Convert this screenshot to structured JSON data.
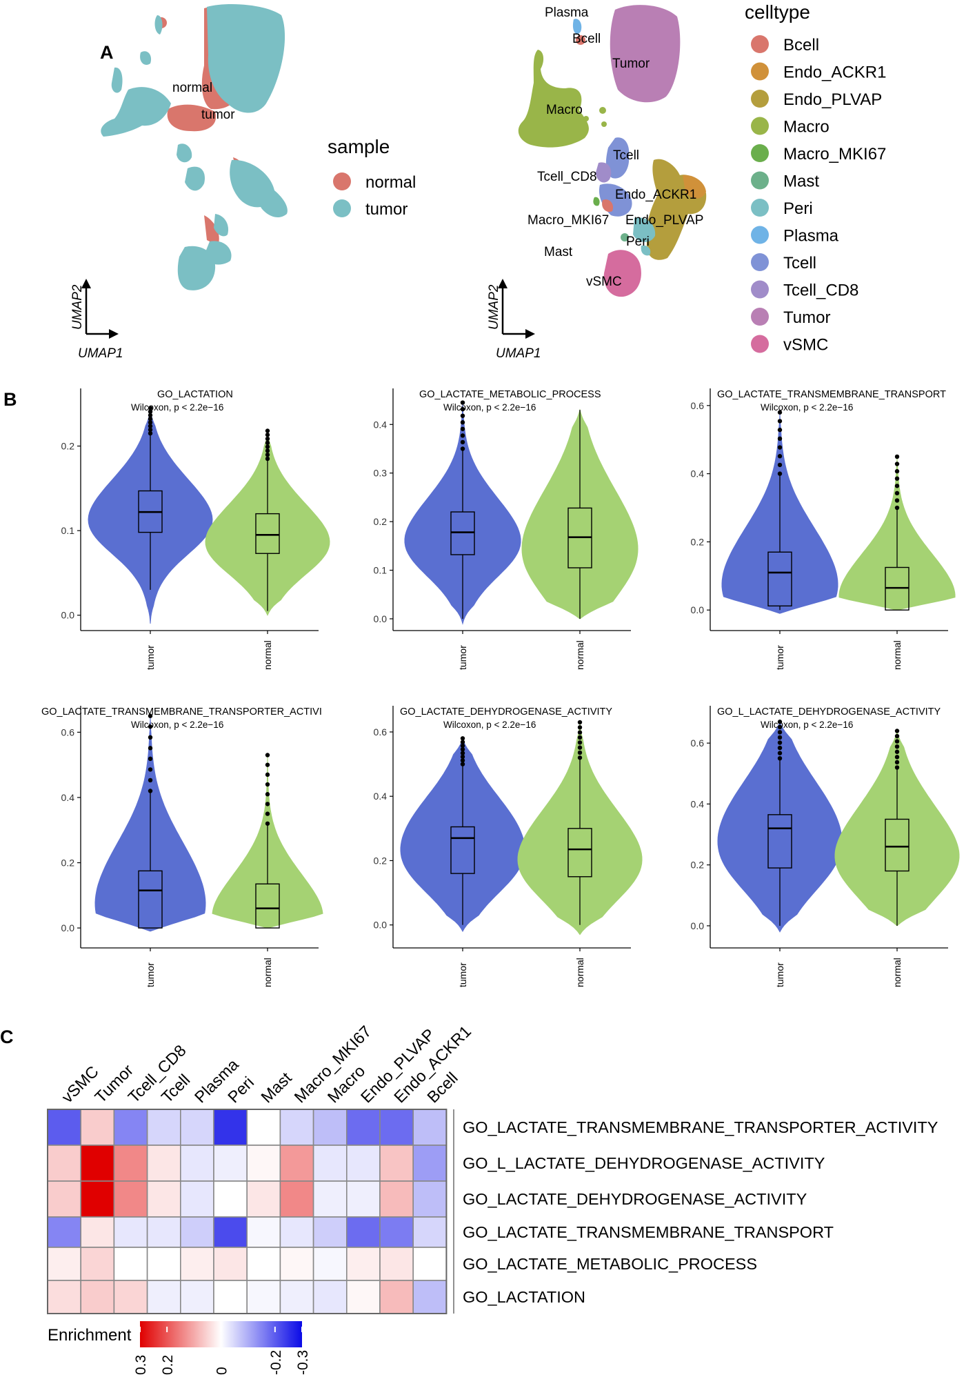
{
  "panel_labels": {
    "a": "A",
    "b": "B",
    "c": "C"
  },
  "umap": {
    "axis_x": "UMAP1",
    "axis_y": "UMAP2",
    "sample_labels": [
      "normal",
      "tumor"
    ],
    "sample_legend": {
      "title": "sample",
      "items": [
        {
          "label": "normal",
          "color": "#d9766c"
        },
        {
          "label": "tumor",
          "color": "#7bbfc4"
        }
      ]
    },
    "celltype_labels": [
      "Plasma",
      "Bcell",
      "Tumor",
      "Macro",
      "Tcell",
      "Tcell_CD8",
      "Endo_ACKR1",
      "Macro_MKI67",
      "Endo_PLVAP",
      "Peri",
      "Mast",
      "vSMC"
    ],
    "celltype_legend": {
      "title": "celltype",
      "items": [
        {
          "label": "Bcell",
          "color": "#d9766c"
        },
        {
          "label": "Endo_ACKR1",
          "color": "#d0913a"
        },
        {
          "label": "Endo_PLVAP",
          "color": "#b49e3d"
        },
        {
          "label": "Macro",
          "color": "#99b549"
        },
        {
          "label": "Macro_MKI67",
          "color": "#6aae4c"
        },
        {
          "label": "Mast",
          "color": "#6cb08a"
        },
        {
          "label": "Peri",
          "color": "#7bbfc4"
        },
        {
          "label": "Plasma",
          "color": "#6fb3e6"
        },
        {
          "label": "Tcell",
          "color": "#7f92d6"
        },
        {
          "label": "Tcell_CD8",
          "color": "#a08cc9"
        },
        {
          "label": "Tumor",
          "color": "#b97fb4"
        },
        {
          "label": "vSMC",
          "color": "#d56c9e"
        }
      ]
    }
  },
  "chart_data": [
    {
      "type": "violin",
      "title": "GO_LACTATION",
      "annotation": "Wilcoxon, p < 2.2e−16",
      "categories": [
        "tumor",
        "normal"
      ],
      "ylim": [
        -0.01,
        0.26
      ],
      "yticks": [
        0.0,
        0.1,
        0.2
      ],
      "ytick_labels": [
        "0.0",
        "0.1",
        "0.2"
      ],
      "groups": [
        {
          "name": "tumor",
          "color": "#5a6fd1",
          "median": 0.122,
          "q1": 0.098,
          "q3": 0.147,
          "whisker_low": 0.03,
          "whisker_high": 0.215,
          "max": 0.245,
          "min": -0.01
        },
        {
          "name": "normal",
          "color": "#a5d273",
          "median": 0.095,
          "q1": 0.073,
          "q3": 0.12,
          "whisker_low": 0.005,
          "whisker_high": 0.185,
          "max": 0.218,
          "min": 0.0
        }
      ]
    },
    {
      "type": "violin",
      "title": "GO_LACTATE_METABOLIC_PROCESS",
      "annotation": "Wilcoxon, p < 2.2e−16",
      "categories": [
        "tumor",
        "normal"
      ],
      "ylim": [
        -0.01,
        0.46
      ],
      "yticks": [
        0.0,
        0.1,
        0.2,
        0.3,
        0.4
      ],
      "ytick_labels": [
        "0.0",
        "0.1",
        "0.2",
        "0.3",
        "0.4"
      ],
      "groups": [
        {
          "name": "tumor",
          "color": "#5a6fd1",
          "median": 0.178,
          "q1": 0.132,
          "q3": 0.22,
          "whisker_low": 0.0,
          "whisker_high": 0.35,
          "max": 0.445,
          "min": -0.01
        },
        {
          "name": "normal",
          "color": "#a5d273",
          "median": 0.168,
          "q1": 0.105,
          "q3": 0.228,
          "whisker_low": 0.0,
          "whisker_high": 0.43,
          "max": 0.43,
          "min": 0.0
        }
      ]
    },
    {
      "type": "violin",
      "title": "GO_LACTATE_TRANSMEMBRANE_TRANSPORT",
      "annotation": "Wilcoxon, p < 2.2e−16",
      "categories": [
        "tumor",
        "normal"
      ],
      "ylim": [
        -0.04,
        0.63
      ],
      "yticks": [
        0.0,
        0.2,
        0.4,
        0.6
      ],
      "ytick_labels": [
        "0.0",
        "0.2",
        "0.4",
        "0.6"
      ],
      "groups": [
        {
          "name": "tumor",
          "color": "#5a6fd1",
          "median": 0.11,
          "q1": 0.012,
          "q3": 0.17,
          "whisker_low": 0.0,
          "whisker_high": 0.4,
          "max": 0.58,
          "min": -0.01
        },
        {
          "name": "normal",
          "color": "#a5d273",
          "median": 0.065,
          "q1": 0.0,
          "q3": 0.125,
          "whisker_low": 0.0,
          "whisker_high": 0.3,
          "max": 0.45,
          "min": 0.0
        }
      ]
    },
    {
      "type": "violin",
      "title": "GO_LACTATE_TRANSMEMBRANE_TRANSPORTER_ACTIVI",
      "annotation": "Wilcoxon, p < 2.2e−16",
      "categories": [
        "tumor",
        "normal"
      ],
      "ylim": [
        -0.04,
        0.66
      ],
      "yticks": [
        0.0,
        0.2,
        0.4,
        0.6
      ],
      "ytick_labels": [
        "0.0",
        "0.2",
        "0.4",
        "0.6"
      ],
      "groups": [
        {
          "name": "tumor",
          "color": "#5a6fd1",
          "median": 0.115,
          "q1": 0.0,
          "q3": 0.175,
          "whisker_low": 0.0,
          "whisker_high": 0.42,
          "max": 0.65,
          "min": -0.01
        },
        {
          "name": "normal",
          "color": "#a5d273",
          "median": 0.06,
          "q1": 0.0,
          "q3": 0.135,
          "whisker_low": 0.0,
          "whisker_high": 0.32,
          "max": 0.53,
          "min": 0.0
        }
      ]
    },
    {
      "type": "violin",
      "title": "GO_LACTATE_DEHYDROGENASE_ACTIVITY",
      "annotation": "Wilcoxon, p < 2.2e−16",
      "categories": [
        "tumor",
        "normal"
      ],
      "ylim": [
        -0.05,
        0.66
      ],
      "yticks": [
        0.0,
        0.2,
        0.4,
        0.6
      ],
      "ytick_labels": [
        "0.0",
        "0.2",
        "0.4",
        "0.6"
      ],
      "groups": [
        {
          "name": "tumor",
          "color": "#5a6fd1",
          "median": 0.27,
          "q1": 0.16,
          "q3": 0.305,
          "whisker_low": 0.0,
          "whisker_high": 0.5,
          "max": 0.58,
          "min": -0.02
        },
        {
          "name": "normal",
          "color": "#a5d273",
          "median": 0.235,
          "q1": 0.15,
          "q3": 0.3,
          "whisker_low": 0.0,
          "whisker_high": 0.52,
          "max": 0.63,
          "min": -0.03
        }
      ]
    },
    {
      "type": "violin",
      "title": "GO_L_LACTATE_DEHYDROGENASE_ACTIVITY",
      "annotation": "Wilcoxon, p < 2.2e−16",
      "categories": [
        "tumor",
        "normal"
      ],
      "ylim": [
        -0.05,
        0.7
      ],
      "yticks": [
        0.0,
        0.2,
        0.4,
        0.6
      ],
      "ytick_labels": [
        "0.0",
        "0.2",
        "0.4",
        "0.6"
      ],
      "groups": [
        {
          "name": "tumor",
          "color": "#5a6fd1",
          "median": 0.32,
          "q1": 0.19,
          "q3": 0.365,
          "whisker_low": 0.0,
          "whisker_high": 0.55,
          "max": 0.67,
          "min": -0.02
        },
        {
          "name": "normal",
          "color": "#a5d273",
          "median": 0.26,
          "q1": 0.18,
          "q3": 0.35,
          "whisker_low": 0.0,
          "whisker_high": 0.52,
          "max": 0.64,
          "min": 0.0
        }
      ]
    },
    {
      "type": "heatmap",
      "title": "",
      "columns": [
        "vSMC",
        "Tumor",
        "Tcell_CD8",
        "Tcell",
        "Plasma",
        "Peri",
        "Mast",
        "Macro_MKI67",
        "Macro",
        "Endo_PLVAP",
        "Endo_ACKR1",
        "Bcell"
      ],
      "rows": [
        "GO_LACTATE_TRANSMEMBRANE_TRANSPORTER_ACTIVITY",
        "GO_L_LACTATE_DEHYDROGENASE_ACTIVITY",
        "GO_LACTATE_DEHYDROGENASE_ACTIVITY",
        "GO_LACTATE_TRANSMEMBRANE_TRANSPORT",
        "GO_LACTATE_METABOLIC_PROCESS",
        "GO_LACTATION"
      ],
      "values": [
        [
          -0.2,
          0.06,
          -0.15,
          -0.05,
          -0.05,
          -0.25,
          0.0,
          -0.05,
          -0.08,
          -0.18,
          -0.18,
          -0.08
        ],
        [
          0.06,
          0.3,
          0.14,
          0.03,
          -0.03,
          -0.02,
          0.01,
          0.12,
          -0.03,
          -0.03,
          0.07,
          -0.12
        ],
        [
          0.06,
          0.3,
          0.14,
          0.03,
          -0.03,
          0.0,
          0.03,
          0.14,
          -0.02,
          -0.02,
          0.08,
          -0.08
        ],
        [
          -0.15,
          0.03,
          -0.03,
          -0.03,
          -0.06,
          -0.22,
          -0.01,
          -0.03,
          -0.06,
          -0.18,
          -0.16,
          -0.05
        ],
        [
          0.02,
          0.05,
          0.0,
          0.0,
          0.02,
          0.03,
          0.0,
          0.01,
          -0.01,
          0.02,
          0.03,
          0.0
        ],
        [
          0.04,
          0.06,
          0.05,
          -0.02,
          -0.02,
          0.0,
          -0.01,
          -0.02,
          -0.03,
          0.01,
          0.08,
          -0.08
        ]
      ],
      "legend": {
        "title": "Enrichment",
        "tick_labels": [
          "0.3",
          "0.2",
          "0",
          "-0.2",
          "-0.3"
        ],
        "range": [
          0.3,
          -0.3
        ],
        "tick_values": [
          0.3,
          0.2,
          0,
          -0.2,
          -0.3
        ]
      },
      "colors": {
        "pos": "#e00000",
        "mid": "#ffffff",
        "neg": "#0a0ae6"
      }
    }
  ]
}
